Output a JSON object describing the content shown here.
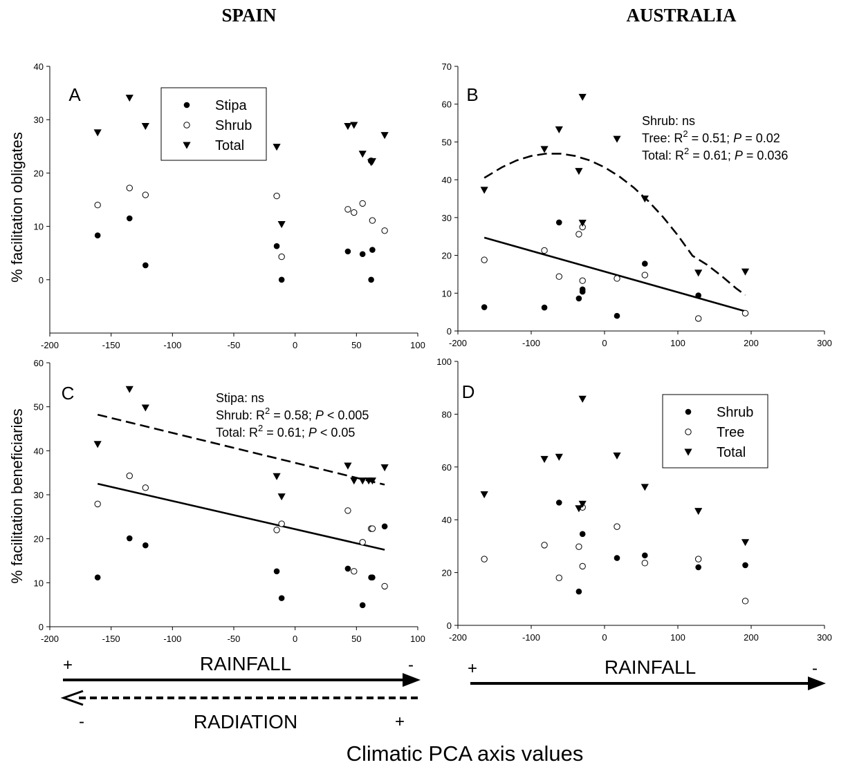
{
  "figure": {
    "country_left": "SPAIN",
    "country_right": "AUSTRALIA",
    "ylabel_top": "% facilitation obligates",
    "ylabel_bottom": "% facilitation beneficiaries",
    "xlabel": "Climatic PCA axis values",
    "spain_axes": {
      "rainfall": "RAINFALL",
      "rainfall_plus": "+",
      "rainfall_minus": "-",
      "radiation": "RADIATION",
      "radiation_minus": "-",
      "radiation_plus": "+"
    },
    "australia_axis": {
      "rainfall": "RAINFALL",
      "rainfall_plus": "+",
      "rainfall_minus": "-"
    }
  },
  "chart_data": [
    {
      "panel": "A",
      "type": "scatter",
      "xlim": [
        -200,
        100
      ],
      "xticks": [
        -200,
        -150,
        -100,
        -50,
        0,
        50,
        100
      ],
      "ylim": [
        -10,
        40
      ],
      "yticks": [
        0,
        10,
        20,
        30,
        40
      ],
      "legend": {
        "position": "top-left",
        "entries": [
          "Stipa",
          "Shrub",
          "Total"
        ]
      },
      "annotations": [],
      "series": [
        {
          "name": "Stipa",
          "marker": "filled-circle",
          "x": [
            -161,
            -135,
            -122,
            -15,
            -11,
            43,
            55,
            63,
            62
          ],
          "y": [
            8.3,
            11.5,
            2.7,
            6.3,
            0,
            5.3,
            4.8,
            5.6,
            0
          ]
        },
        {
          "name": "Shrub",
          "marker": "open-circle",
          "x": [
            -161,
            -135,
            -122,
            -15,
            -11,
            43,
            48,
            55,
            63,
            62,
            73
          ],
          "y": [
            14,
            17.2,
            15.9,
            15.7,
            4.3,
            13.2,
            12.6,
            14.3,
            11.1,
            22.3,
            9.2
          ]
        },
        {
          "name": "Total",
          "marker": "triangle-down",
          "x": [
            -161,
            -135,
            -122,
            -15,
            -11,
            43,
            48,
            55,
            62,
            63,
            73
          ],
          "y": [
            27.6,
            34.1,
            28.8,
            24.9,
            10.4,
            28.8,
            29,
            23.6,
            22,
            22.2,
            27.1
          ]
        }
      ],
      "fits": []
    },
    {
      "panel": "B",
      "type": "scatter",
      "xlim": [
        -200,
        300
      ],
      "xticks": [
        -200,
        -100,
        0,
        100,
        200,
        300
      ],
      "ylim": [
        0,
        70
      ],
      "yticks": [
        0,
        10,
        20,
        30,
        40,
        50,
        60,
        70
      ],
      "legend": null,
      "annotations": [
        "Shrub: ns",
        "Tree: R² = 0.51; P = 0.02",
        "Total: R² = 0.61; P = 0.036"
      ],
      "series": [
        {
          "name": "Shrub",
          "marker": "filled-circle",
          "x": [
            -164,
            -82,
            -62,
            -35,
            -30,
            -30,
            17,
            55,
            128
          ],
          "y": [
            6.3,
            6.2,
            28.7,
            8.6,
            11,
            10.4,
            4,
            17.8,
            9.4
          ]
        },
        {
          "name": "Tree",
          "marker": "open-circle",
          "x": [
            -164,
            -82,
            -62,
            -35,
            -30,
            -30,
            17,
            55,
            128,
            192
          ],
          "y": [
            18.8,
            21.3,
            14.4,
            25.6,
            27.5,
            13.3,
            13.9,
            14.8,
            3.3,
            4.7
          ]
        },
        {
          "name": "Total",
          "marker": "triangle-down",
          "x": [
            -164,
            -82,
            -62,
            -35,
            -30,
            -30,
            17,
            55,
            128,
            192
          ],
          "y": [
            37.3,
            48.1,
            53.3,
            42.3,
            61.9,
            28.6,
            50.8,
            35,
            15.4,
            15.7
          ]
        }
      ],
      "fits": [
        {
          "series": "Tree",
          "kind": "linear",
          "style": "solid",
          "x": [
            -164,
            192
          ],
          "y": [
            24.7,
            5.2
          ]
        },
        {
          "series": "Total",
          "kind": "quadratic",
          "style": "dashed",
          "x": [
            -164,
            -140,
            -120,
            -100,
            -80,
            -60,
            -40,
            -20,
            0,
            20,
            40,
            60,
            80,
            100,
            120,
            140,
            160,
            180,
            192
          ],
          "y": [
            40.5,
            43.3,
            45.1,
            46.3,
            46.9,
            46.9,
            46.3,
            45.1,
            43.3,
            40.9,
            37.9,
            34.3,
            30.1,
            25.3,
            19.9,
            17.5,
            14.5,
            11.2,
            9.5
          ]
        }
      ]
    },
    {
      "panel": "C",
      "type": "scatter",
      "xlim": [
        -200,
        100
      ],
      "xticks": [
        -200,
        -150,
        -100,
        -50,
        0,
        50,
        100
      ],
      "ylim": [
        0,
        60
      ],
      "yticks": [
        0,
        10,
        20,
        30,
        40,
        50,
        60
      ],
      "legend": null,
      "annotations": [
        "Stipa: ns",
        "Shrub: R² = 0.58; P < 0.005",
        "Total: R² = 0.61; P < 0.05"
      ],
      "series": [
        {
          "name": "Stipa",
          "marker": "filled-circle",
          "x": [
            -161,
            -135,
            -122,
            -15,
            -11,
            43,
            55,
            62,
            63,
            73
          ],
          "y": [
            11.2,
            20.1,
            18.5,
            12.6,
            6.5,
            13.2,
            4.9,
            11.2,
            11.2,
            22.8
          ]
        },
        {
          "name": "Shrub",
          "marker": "open-circle",
          "x": [
            -161,
            -135,
            -122,
            -15,
            -11,
            43,
            48,
            55,
            62,
            63,
            73
          ],
          "y": [
            27.9,
            34.3,
            31.6,
            22,
            23.4,
            26.4,
            12.6,
            19.2,
            22.3,
            22.3,
            9.2
          ]
        },
        {
          "name": "Total",
          "marker": "triangle-down",
          "x": [
            -161,
            -135,
            -122,
            -15,
            -11,
            43,
            48,
            55,
            60,
            63,
            73
          ],
          "y": [
            41.5,
            54,
            49.8,
            34.2,
            29.6,
            36.6,
            33.2,
            33.2,
            33.2,
            33.2,
            36.2
          ]
        }
      ],
      "fits": [
        {
          "series": "Shrub",
          "kind": "linear",
          "style": "solid",
          "x": [
            -161,
            73
          ],
          "y": [
            32.5,
            17.5
          ]
        },
        {
          "series": "Total",
          "kind": "linear",
          "style": "dashed",
          "x": [
            -161,
            73
          ],
          "y": [
            48.2,
            32.3
          ]
        }
      ]
    },
    {
      "panel": "D",
      "type": "scatter",
      "xlim": [
        -200,
        300
      ],
      "xticks": [
        -200,
        -100,
        0,
        100,
        200,
        300
      ],
      "ylim": [
        0,
        100
      ],
      "yticks": [
        0,
        20,
        40,
        60,
        80,
        100
      ],
      "legend": {
        "position": "top-right",
        "entries": [
          "Shrub",
          "Tree",
          "Total"
        ]
      },
      "annotations": [],
      "series": [
        {
          "name": "Shrub",
          "marker": "filled-circle",
          "x": [
            -62,
            -35,
            -30,
            17,
            55,
            128,
            192
          ],
          "y": [
            46.5,
            12.8,
            34.6,
            25.5,
            26.5,
            22,
            22.8
          ]
        },
        {
          "name": "Tree",
          "marker": "open-circle",
          "x": [
            -164,
            -82,
            -62,
            -35,
            -30,
            -30,
            17,
            55,
            128,
            192
          ],
          "y": [
            25.1,
            30.4,
            18,
            29.8,
            44.7,
            22.4,
            37.4,
            23.6,
            25.1,
            9.2
          ]
        },
        {
          "name": "Total",
          "marker": "triangle-down",
          "x": [
            -164,
            -82,
            -62,
            -35,
            -30,
            -30,
            17,
            55,
            128,
            192
          ],
          "y": [
            49.6,
            63,
            63.8,
            44.3,
            85.8,
            46,
            64.3,
            52.4,
            43.3,
            31.5
          ]
        }
      ],
      "fits": []
    }
  ]
}
